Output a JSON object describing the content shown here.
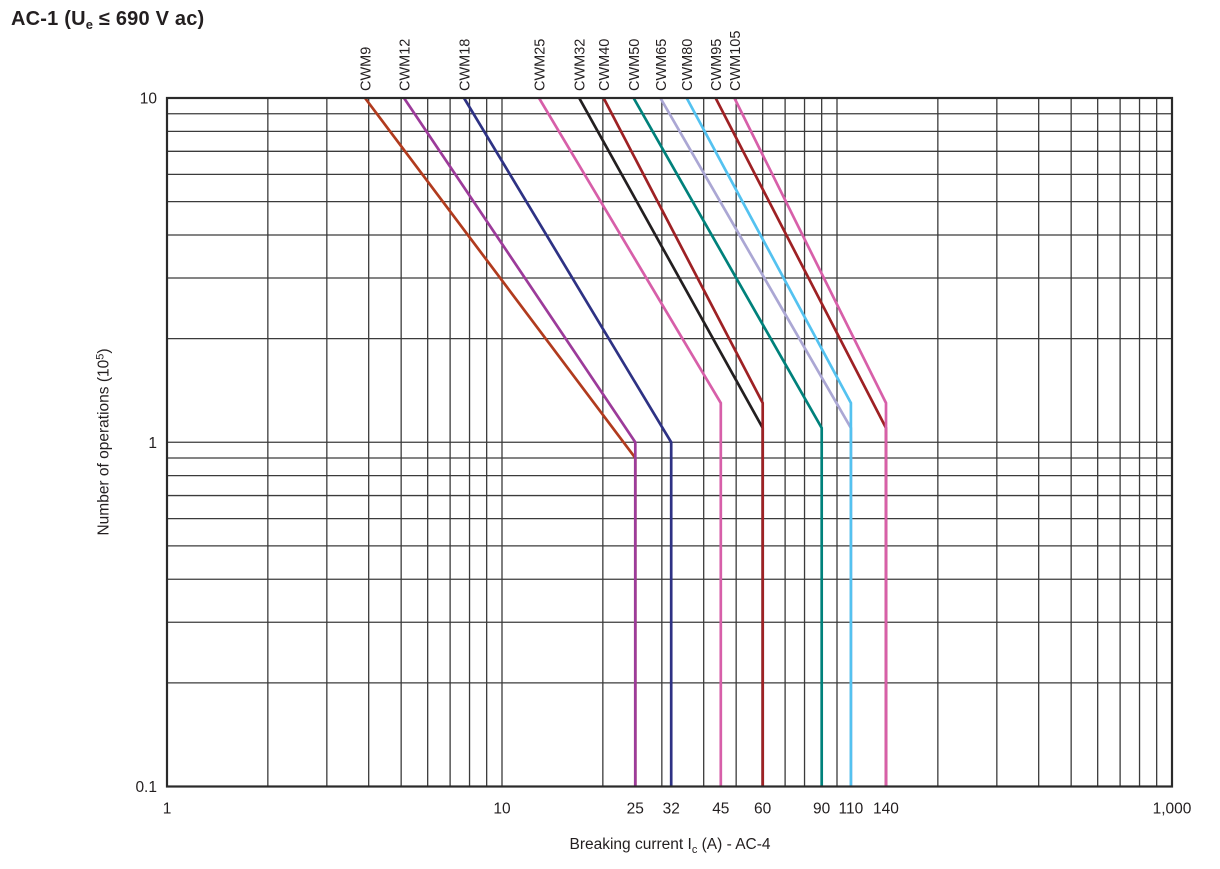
{
  "header": {
    "title_prefix": "AC-1 (U",
    "title_sub": "e",
    "title_suffix": " ≤ 690 V ac)"
  },
  "axes": {
    "x_label_pre": "Breaking current I",
    "x_label_sub": "c",
    "x_label_post": " (A) - AC-4",
    "y_label_pre": "Number of operations (10",
    "y_label_sup": "5",
    "y_label_post": ")"
  },
  "colors": {
    "grid": "#3b3b3b",
    "border": "#2a2a2a",
    "text": "#231f20"
  },
  "chart_data": {
    "type": "line",
    "title": "AC-1 (Ue ≤ 690 V ac)",
    "xlabel": "Breaking current Ic (A) - AC-4",
    "ylabel": "Number of operations (10⁵)",
    "x_scale": "log",
    "y_scale": "log",
    "xlim": [
      1,
      1000
    ],
    "ylim": [
      0.1,
      10
    ],
    "grid": "log-minor-both",
    "legend_position": "rotated-labels-above-plot",
    "x_ticks": [
      {
        "v": 1,
        "label": "1"
      },
      {
        "v": 10,
        "label": "10"
      },
      {
        "v": 25,
        "label": "25"
      },
      {
        "v": 32,
        "label": "32"
      },
      {
        "v": 45,
        "label": "45"
      },
      {
        "v": 60,
        "label": "60"
      },
      {
        "v": 90,
        "label": "90"
      },
      {
        "v": 110,
        "label": "110"
      },
      {
        "v": 140,
        "label": "140"
      },
      {
        "v": 1000,
        "label": "1,000"
      }
    ],
    "y_ticks": [
      {
        "v": 10,
        "label": "10"
      },
      {
        "v": 1,
        "label": "1"
      },
      {
        "v": 0.1,
        "label": "0.1"
      }
    ],
    "series": [
      {
        "name": "CWM9",
        "color": "#b13b1e",
        "points": [
          [
            3.9,
            10
          ],
          [
            25,
            0.9
          ],
          [
            25,
            0.1
          ]
        ]
      },
      {
        "name": "CWM12",
        "color": "#9c3b9a",
        "points": [
          [
            5.1,
            10
          ],
          [
            25,
            1.0
          ],
          [
            25,
            0.1
          ]
        ]
      },
      {
        "name": "CWM18",
        "color": "#2e3284",
        "points": [
          [
            7.7,
            10
          ],
          [
            32,
            1.0
          ],
          [
            32,
            0.1
          ]
        ]
      },
      {
        "name": "CWM25",
        "color": "#d75fa9",
        "points": [
          [
            12.9,
            10
          ],
          [
            45,
            1.3
          ],
          [
            45,
            0.1
          ]
        ]
      },
      {
        "name": "CWM32",
        "color": "#231f20",
        "points": [
          [
            17,
            10
          ],
          [
            60,
            1.1
          ],
          [
            60,
            0.1
          ]
        ]
      },
      {
        "name": "CWM40",
        "color": "#9e2124",
        "points": [
          [
            20.1,
            10
          ],
          [
            60,
            1.3
          ],
          [
            60,
            0.1
          ]
        ]
      },
      {
        "name": "CWM50",
        "color": "#00817b",
        "points": [
          [
            24.7,
            10
          ],
          [
            90,
            1.1
          ],
          [
            90,
            0.1
          ]
        ]
      },
      {
        "name": "CWM65",
        "color": "#aba7d4",
        "points": [
          [
            29.7,
            10
          ],
          [
            110,
            1.1
          ],
          [
            110,
            0.1
          ]
        ]
      },
      {
        "name": "CWM80",
        "color": "#54c2f0",
        "points": [
          [
            35.6,
            10
          ],
          [
            110,
            1.3
          ],
          [
            110,
            0.1
          ]
        ]
      },
      {
        "name": "CWM95",
        "color": "#9e2124",
        "points": [
          [
            43.4,
            10
          ],
          [
            140,
            1.1
          ],
          [
            140,
            0.1
          ]
        ]
      },
      {
        "name": "CWM105",
        "color": "#d75fa9",
        "points": [
          [
            49.4,
            10
          ],
          [
            140,
            1.3
          ],
          [
            140,
            0.1
          ]
        ]
      }
    ]
  }
}
